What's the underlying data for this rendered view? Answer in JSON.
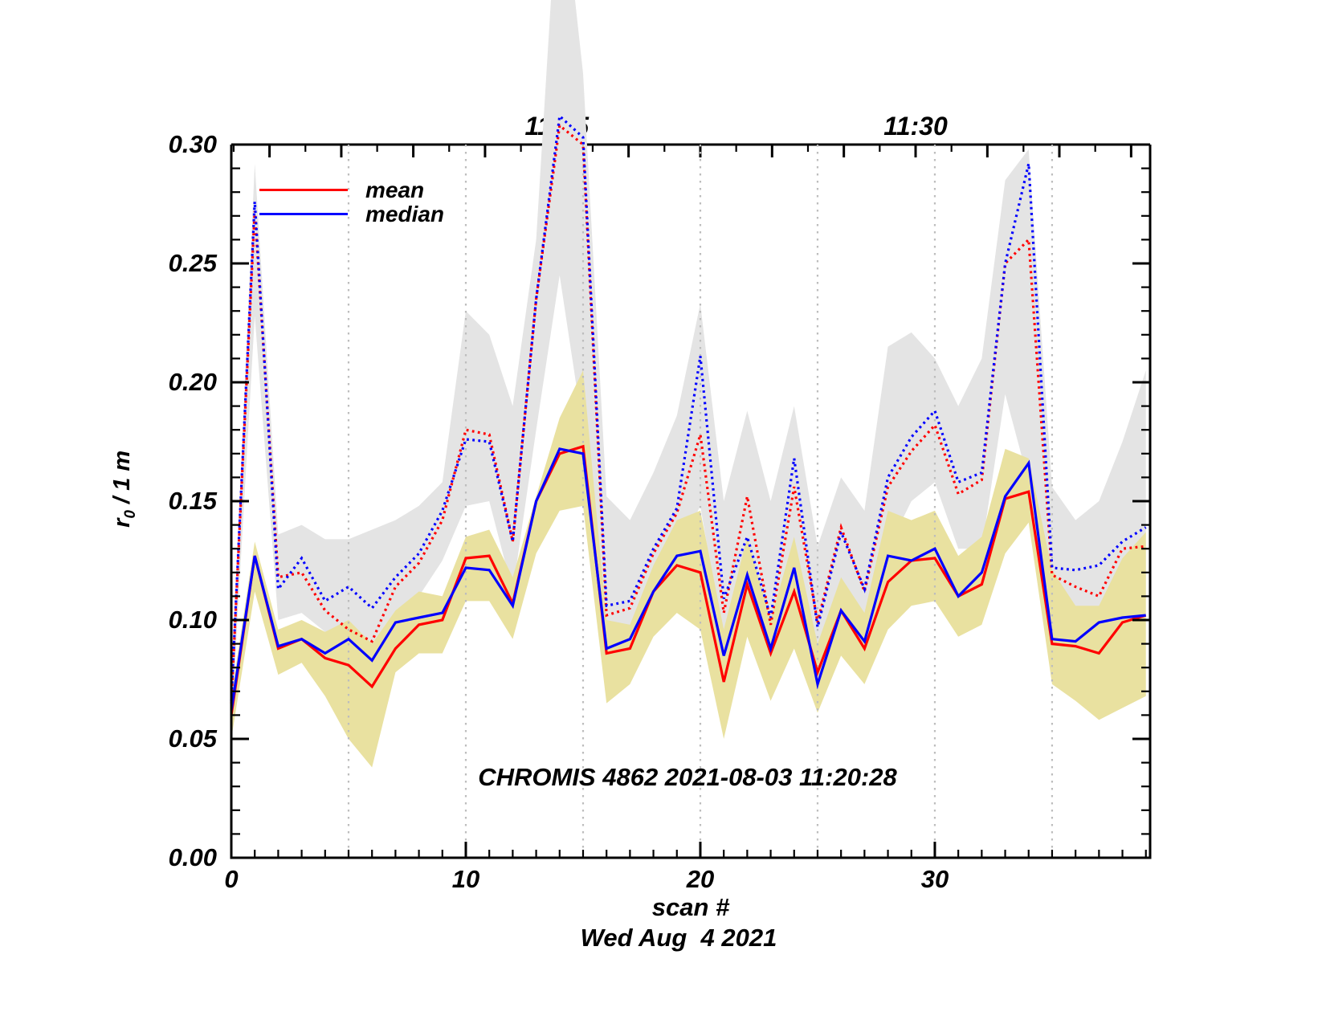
{
  "chart_data": {
    "type": "line",
    "title_inner": "CHROMIS 4862 2021-08-03 11:20:28",
    "xlabel": "scan #",
    "date_label": "Wed Aug  4 2021",
    "ylabel": {
      "base": "r",
      "sub": "0",
      "rest": " / 1 m"
    },
    "xlim": [
      0,
      39.18
    ],
    "ylim": [
      0,
      0.3
    ],
    "grid": true,
    "legend_position": "top-left",
    "x": [
      0,
      1,
      2,
      3,
      4,
      5,
      6,
      7,
      8,
      9,
      10,
      11,
      12,
      13,
      14,
      15,
      16,
      17,
      18,
      19,
      20,
      21,
      22,
      23,
      24,
      25,
      26,
      27,
      28,
      29,
      30,
      31,
      32,
      33,
      34,
      35,
      36,
      37,
      38,
      39
    ],
    "series": [
      {
        "name": "mean",
        "color": "#ff0000",
        "style": "solid",
        "values": [
          0.06,
          0.127,
          0.088,
          0.092,
          0.084,
          0.081,
          0.072,
          0.088,
          0.098,
          0.1,
          0.126,
          0.127,
          0.107,
          0.15,
          0.17,
          0.173,
          0.086,
          0.088,
          0.112,
          0.123,
          0.12,
          0.074,
          0.115,
          0.086,
          0.112,
          0.078,
          0.104,
          0.088,
          0.116,
          0.125,
          0.126,
          0.11,
          0.115,
          0.151,
          0.154,
          0.09,
          0.089,
          0.086,
          0.099,
          0.102
        ]
      },
      {
        "name": "median",
        "color": "#0000ff",
        "style": "solid",
        "values": [
          0.062,
          0.127,
          0.089,
          0.092,
          0.086,
          0.092,
          0.083,
          0.099,
          0.101,
          0.103,
          0.122,
          0.121,
          0.106,
          0.15,
          0.172,
          0.17,
          0.088,
          0.092,
          0.112,
          0.127,
          0.129,
          0.085,
          0.119,
          0.088,
          0.122,
          0.073,
          0.104,
          0.091,
          0.127,
          0.125,
          0.13,
          0.11,
          0.12,
          0.152,
          0.166,
          0.092,
          0.091,
          0.099,
          0.101,
          0.102
        ]
      },
      {
        "name": "mean-dotted",
        "color": "#ff0000",
        "style": "dotted",
        "values": [
          0.065,
          0.272,
          0.118,
          0.12,
          0.104,
          0.096,
          0.091,
          0.114,
          0.124,
          0.142,
          0.18,
          0.178,
          0.133,
          0.235,
          0.308,
          0.3,
          0.102,
          0.105,
          0.128,
          0.145,
          0.178,
          0.103,
          0.152,
          0.098,
          0.156,
          0.099,
          0.139,
          0.112,
          0.156,
          0.171,
          0.182,
          0.153,
          0.159,
          0.25,
          0.26,
          0.119,
          0.114,
          0.11,
          0.13,
          0.131
        ]
      },
      {
        "name": "median-dotted",
        "color": "#0000ff",
        "style": "dotted",
        "values": [
          0.066,
          0.276,
          0.113,
          0.126,
          0.108,
          0.114,
          0.105,
          0.118,
          0.128,
          0.146,
          0.176,
          0.175,
          0.133,
          0.235,
          0.312,
          0.303,
          0.106,
          0.108,
          0.13,
          0.147,
          0.211,
          0.109,
          0.135,
          0.101,
          0.168,
          0.097,
          0.137,
          0.113,
          0.16,
          0.177,
          0.188,
          0.158,
          0.162,
          0.25,
          0.292,
          0.122,
          0.121,
          0.123,
          0.133,
          0.139
        ]
      }
    ],
    "bands": [
      {
        "name": "grey-minmax-band",
        "color": "#e4e4e4",
        "min": [
          0.055,
          0.228,
          0.1,
          0.103,
          0.095,
          0.083,
          0.079,
          0.1,
          0.11,
          0.125,
          0.148,
          0.15,
          0.112,
          0.18,
          0.245,
          0.18,
          0.085,
          0.09,
          0.11,
          0.128,
          0.148,
          0.09,
          0.118,
          0.086,
          0.128,
          0.082,
          0.11,
          0.09,
          0.13,
          0.15,
          0.158,
          0.13,
          0.13,
          0.195,
          0.158,
          0.1,
          0.1,
          0.095,
          0.105,
          0.112
        ],
        "max": [
          0.075,
          0.292,
          0.136,
          0.14,
          0.134,
          0.134,
          0.138,
          0.142,
          0.148,
          0.158,
          0.23,
          0.22,
          0.19,
          0.26,
          0.42,
          0.33,
          0.152,
          0.142,
          0.162,
          0.186,
          0.233,
          0.15,
          0.188,
          0.15,
          0.19,
          0.131,
          0.16,
          0.146,
          0.215,
          0.221,
          0.21,
          0.19,
          0.21,
          0.285,
          0.298,
          0.156,
          0.142,
          0.15,
          0.175,
          0.205
        ]
      },
      {
        "name": "yellow-minmax-band",
        "color": "#e9e1a0",
        "min": [
          0.05,
          0.112,
          0.077,
          0.082,
          0.068,
          0.05,
          0.038,
          0.078,
          0.086,
          0.086,
          0.108,
          0.108,
          0.092,
          0.128,
          0.146,
          0.148,
          0.065,
          0.073,
          0.093,
          0.103,
          0.096,
          0.05,
          0.093,
          0.066,
          0.088,
          0.061,
          0.085,
          0.073,
          0.096,
          0.106,
          0.108,
          0.093,
          0.098,
          0.128,
          0.141,
          0.073,
          0.066,
          0.058,
          0.063,
          0.068
        ],
        "max": [
          0.068,
          0.133,
          0.096,
          0.1,
          0.095,
          0.1,
          0.09,
          0.104,
          0.112,
          0.11,
          0.135,
          0.138,
          0.118,
          0.152,
          0.185,
          0.205,
          0.1,
          0.098,
          0.123,
          0.142,
          0.146,
          0.096,
          0.135,
          0.1,
          0.135,
          0.09,
          0.118,
          0.103,
          0.146,
          0.142,
          0.146,
          0.127,
          0.135,
          0.172,
          0.168,
          0.121,
          0.106,
          0.106,
          0.126,
          0.137
        ]
      }
    ],
    "x_ticks": {
      "major": [
        0,
        10,
        20,
        30
      ],
      "labels": [
        "0",
        "10",
        "20",
        "30"
      ],
      "minor_step": 1
    },
    "y_ticks": {
      "major": [
        0,
        0.05,
        0.1,
        0.15,
        0.2,
        0.25,
        0.3
      ],
      "labels": [
        "0.00",
        "0.05",
        "0.10",
        "0.15",
        "0.20",
        "0.25",
        "0.30"
      ],
      "minor_step": 0.01
    },
    "gridlines_x": [
      5,
      10,
      15,
      20,
      25,
      30,
      35
    ],
    "top_axis": {
      "labels": [
        {
          "text": "11:25",
          "scan": 13.88
        },
        {
          "text": "11:30",
          "scan": 29.18
        }
      ],
      "major_scans": [
        1.63,
        4.69,
        7.76,
        10.82,
        13.88,
        16.94,
        20.0,
        23.06,
        26.12,
        29.18,
        32.24,
        35.31,
        38.37
      ],
      "minor_scans": [
        0.1,
        3.16,
        6.22,
        9.29,
        12.35,
        15.41,
        18.47,
        21.53,
        24.59,
        27.65,
        30.71,
        33.78,
        36.84
      ]
    },
    "legend": {
      "items": [
        {
          "label": "mean",
          "color": "#ff0000"
        },
        {
          "label": "median",
          "color": "#0000ff"
        }
      ]
    },
    "colors": {
      "axis": "#000000",
      "gridline": "#bdbdbd",
      "background": "#ffffff"
    }
  }
}
